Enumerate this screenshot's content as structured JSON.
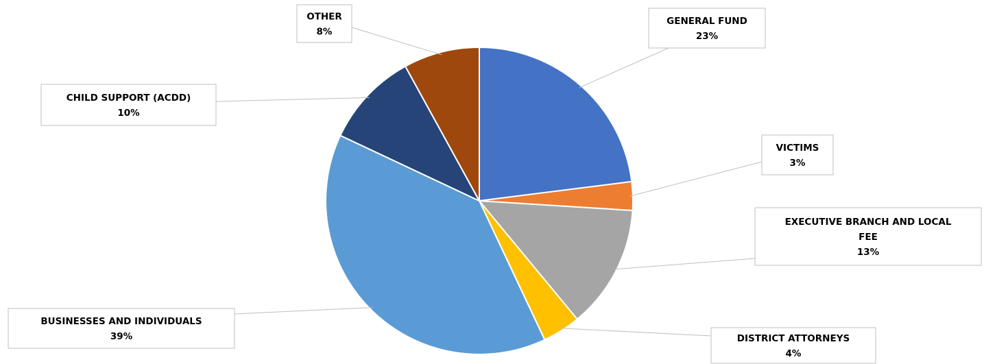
{
  "chart_data": {
    "type": "pie",
    "title": "",
    "slices": [
      {
        "name_lines": [
          "GENERAL FUND"
        ],
        "label": "23%",
        "value": 23,
        "color": "#4472C4"
      },
      {
        "name_lines": [
          "VICTIMS"
        ],
        "label": "3%",
        "value": 3,
        "color": "#ED7D31"
      },
      {
        "name_lines": [
          "EXECUTIVE BRANCH AND LOCAL",
          "FEE"
        ],
        "label": "13%",
        "value": 13,
        "color": "#A5A5A5"
      },
      {
        "name_lines": [
          "DISTRICT ATTORNEYS"
        ],
        "label": "4%",
        "value": 4,
        "color": "#FFC000"
      },
      {
        "name_lines": [
          "BUSINESSES AND INDIVIDUALS"
        ],
        "label": "39%",
        "value": 39,
        "color": "#5B9BD5"
      },
      {
        "name_lines": [
          "CHILD SUPPORT (ACDD)"
        ],
        "label": "10%",
        "value": 10,
        "color": "#264478"
      },
      {
        "name_lines": [
          "OTHER"
        ],
        "label": "8%",
        "value": 8,
        "color": "#9E480E"
      }
    ],
    "legend": "none",
    "data_labels": "outside with leader lines"
  }
}
